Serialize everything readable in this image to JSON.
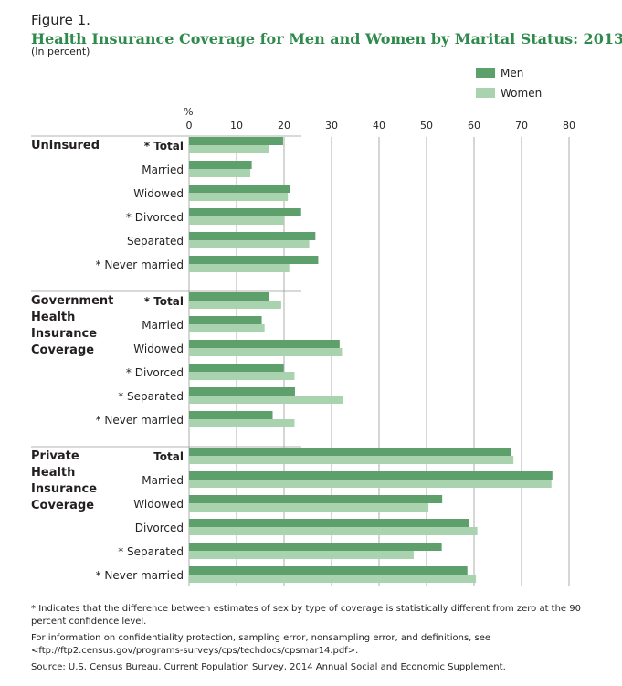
{
  "figure_label": "Figure 1.",
  "title": "Health Insurance Coverage for Men and Women by Marital Status: 2013",
  "subtitle": "(In percent)",
  "footnotes": {
    "asterisk": "Indicates that the difference between estimates of sex by type of coverage is statistically different from zero at the 90 percent confidence level.",
    "info": "For information on confidentiality protection, sampling error, nonsampling error, and definitions, see <ftp://ftp2.census.gov/programs-surveys/cps/techdocs/cpsmar14.pdf>.",
    "source": "Source: U.S. Census Bureau, Current Population Survey, 2014 Annual Social and Economic Supplement."
  },
  "colors": {
    "men": "#5ea06c",
    "women": "#a9d3ae",
    "title": "#2f8a4c",
    "grid": "#9a9a9a"
  },
  "chart_data": {
    "type": "bar",
    "orientation": "horizontal",
    "axis_unit": "%",
    "xlim": [
      0,
      80
    ],
    "xticks": [
      0,
      10,
      20,
      30,
      40,
      50,
      60,
      70,
      80
    ],
    "grid": true,
    "legend": {
      "position": "top-right",
      "entries": [
        "Men",
        "Women"
      ]
    },
    "series_names": [
      "Men",
      "Women"
    ],
    "groups": [
      {
        "label": [
          "Uninsured"
        ],
        "rows": [
          {
            "label": "Total",
            "star": true,
            "bold": true,
            "men": 19.8,
            "women": 16.9
          },
          {
            "label": "Married",
            "star": false,
            "bold": false,
            "men": 13.2,
            "women": 12.9
          },
          {
            "label": "Widowed",
            "star": false,
            "bold": false,
            "men": 21.3,
            "women": 20.8
          },
          {
            "label": "Divorced",
            "star": true,
            "bold": false,
            "men": 23.6,
            "women": 20.0
          },
          {
            "label": "Separated",
            "star": false,
            "bold": false,
            "men": 26.6,
            "women": 25.3
          },
          {
            "label": "Never married",
            "star": true,
            "bold": false,
            "men": 27.2,
            "women": 21.1
          }
        ]
      },
      {
        "label": [
          "Government",
          "Health",
          "Insurance",
          "Coverage"
        ],
        "rows": [
          {
            "label": "Total",
            "star": true,
            "bold": true,
            "men": 16.9,
            "women": 19.4
          },
          {
            "label": "Married",
            "star": false,
            "bold": false,
            "men": 15.3,
            "women": 15.9
          },
          {
            "label": "Widowed",
            "star": false,
            "bold": false,
            "men": 31.7,
            "women": 32.2
          },
          {
            "label": "Divorced",
            "star": true,
            "bold": false,
            "men": 19.9,
            "women": 22.2
          },
          {
            "label": "Separated",
            "star": true,
            "bold": false,
            "men": 22.3,
            "women": 32.4
          },
          {
            "label": "Never married",
            "star": true,
            "bold": false,
            "men": 17.6,
            "women": 22.2
          }
        ]
      },
      {
        "label": [
          "Private",
          "Health",
          "Insurance",
          "Coverage"
        ],
        "rows": [
          {
            "label": "Total",
            "star": false,
            "bold": true,
            "men": 67.8,
            "women": 68.3
          },
          {
            "label": "Married",
            "star": false,
            "bold": false,
            "men": 76.5,
            "women": 76.3
          },
          {
            "label": "Widowed",
            "star": false,
            "bold": false,
            "men": 53.3,
            "women": 50.4
          },
          {
            "label": "Divorced",
            "star": false,
            "bold": false,
            "men": 59.0,
            "women": 60.7
          },
          {
            "label": "Separated",
            "star": true,
            "bold": false,
            "men": 53.2,
            "women": 47.3
          },
          {
            "label": "Never married",
            "star": true,
            "bold": false,
            "men": 58.6,
            "women": 60.4
          }
        ]
      }
    ]
  }
}
